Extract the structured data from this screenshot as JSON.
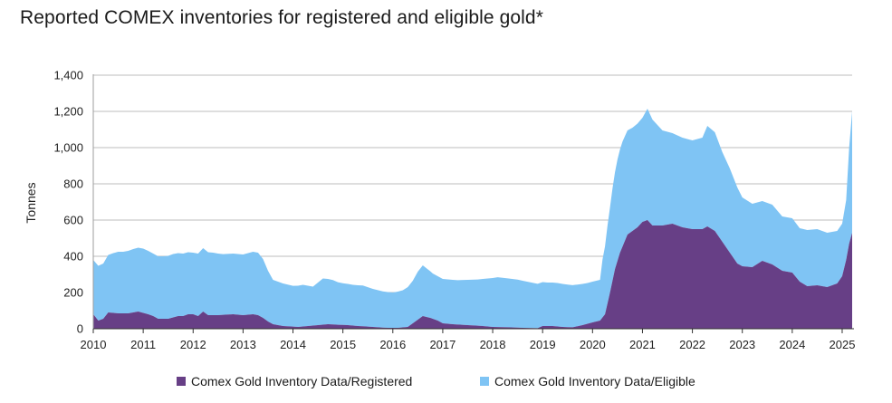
{
  "chart_data": {
    "type": "area",
    "title": "Reported COMEX inventories for registered and eligible gold*",
    "ylabel": "Tonnes",
    "xlabel": "",
    "ylim": [
      0,
      1400
    ],
    "yticks": [
      0,
      200,
      400,
      600,
      800,
      1000,
      1200,
      1400
    ],
    "ytick_labels": [
      "0",
      "200",
      "400",
      "600",
      "800",
      "1,000",
      "1,200",
      "1,400"
    ],
    "xlim": [
      2010,
      2025.2
    ],
    "xticks": [
      2010,
      2011,
      2012,
      2013,
      2014,
      2015,
      2016,
      2017,
      2018,
      2019,
      2020,
      2021,
      2022,
      2023,
      2024,
      2025
    ],
    "stacked": true,
    "grid": "horizontal",
    "legend_position": "bottom",
    "series": [
      {
        "name": "Comex Gold Inventory Data/Registered",
        "color": "#673f86",
        "points": [
          [
            2010.0,
            80
          ],
          [
            2010.1,
            45
          ],
          [
            2010.2,
            55
          ],
          [
            2010.3,
            90
          ],
          [
            2010.5,
            85
          ],
          [
            2010.7,
            85
          ],
          [
            2010.9,
            95
          ],
          [
            2011.1,
            80
          ],
          [
            2011.2,
            70
          ],
          [
            2011.3,
            55
          ],
          [
            2011.5,
            55
          ],
          [
            2011.7,
            70
          ],
          [
            2011.8,
            70
          ],
          [
            2011.9,
            80
          ],
          [
            2012.0,
            80
          ],
          [
            2012.1,
            70
          ],
          [
            2012.2,
            95
          ],
          [
            2012.3,
            75
          ],
          [
            2012.5,
            75
          ],
          [
            2012.8,
            80
          ],
          [
            2013.0,
            75
          ],
          [
            2013.2,
            80
          ],
          [
            2013.3,
            75
          ],
          [
            2013.4,
            60
          ],
          [
            2013.5,
            40
          ],
          [
            2013.6,
            25
          ],
          [
            2013.8,
            15
          ],
          [
            2014.0,
            12
          ],
          [
            2014.1,
            10
          ],
          [
            2014.3,
            15
          ],
          [
            2014.5,
            20
          ],
          [
            2014.7,
            25
          ],
          [
            2014.9,
            22
          ],
          [
            2015.1,
            20
          ],
          [
            2015.3,
            15
          ],
          [
            2015.5,
            12
          ],
          [
            2015.7,
            8
          ],
          [
            2015.9,
            5
          ],
          [
            2016.1,
            5
          ],
          [
            2016.3,
            10
          ],
          [
            2016.4,
            30
          ],
          [
            2016.5,
            50
          ],
          [
            2016.6,
            70
          ],
          [
            2016.75,
            60
          ],
          [
            2016.9,
            45
          ],
          [
            2017.0,
            30
          ],
          [
            2017.2,
            25
          ],
          [
            2017.5,
            20
          ],
          [
            2017.8,
            15
          ],
          [
            2018.0,
            10
          ],
          [
            2018.3,
            8
          ],
          [
            2018.6,
            5
          ],
          [
            2018.9,
            3
          ],
          [
            2019.0,
            15
          ],
          [
            2019.2,
            15
          ],
          [
            2019.4,
            10
          ],
          [
            2019.6,
            8
          ],
          [
            2019.8,
            20
          ],
          [
            2020.0,
            35
          ],
          [
            2020.15,
            45
          ],
          [
            2020.25,
            80
          ],
          [
            2020.35,
            200
          ],
          [
            2020.45,
            330
          ],
          [
            2020.55,
            420
          ],
          [
            2020.7,
            520
          ],
          [
            2020.9,
            560
          ],
          [
            2021.0,
            590
          ],
          [
            2021.1,
            600
          ],
          [
            2021.2,
            570
          ],
          [
            2021.4,
            570
          ],
          [
            2021.6,
            580
          ],
          [
            2021.8,
            560
          ],
          [
            2022.0,
            550
          ],
          [
            2022.2,
            550
          ],
          [
            2022.3,
            565
          ],
          [
            2022.45,
            540
          ],
          [
            2022.6,
            480
          ],
          [
            2022.75,
            420
          ],
          [
            2022.9,
            360
          ],
          [
            2023.0,
            345
          ],
          [
            2023.2,
            340
          ],
          [
            2023.4,
            375
          ],
          [
            2023.6,
            355
          ],
          [
            2023.8,
            320
          ],
          [
            2024.0,
            310
          ],
          [
            2024.15,
            260
          ],
          [
            2024.3,
            235
          ],
          [
            2024.5,
            240
          ],
          [
            2024.7,
            230
          ],
          [
            2024.9,
            250
          ],
          [
            2025.0,
            290
          ],
          [
            2025.08,
            380
          ],
          [
            2025.14,
            470
          ],
          [
            2025.2,
            530
          ]
        ]
      },
      {
        "name": "Comex Gold Inventory Data/Eligible",
        "color": "#7fc4f4",
        "points": [
          [
            2010.0,
            300
          ],
          [
            2010.2,
            305
          ],
          [
            2010.4,
            330
          ],
          [
            2010.5,
            340
          ],
          [
            2010.6,
            340
          ],
          [
            2010.8,
            350
          ],
          [
            2011.0,
            355
          ],
          [
            2011.2,
            345
          ],
          [
            2011.4,
            345
          ],
          [
            2011.6,
            350
          ],
          [
            2011.8,
            345
          ],
          [
            2012.0,
            340
          ],
          [
            2012.2,
            350
          ],
          [
            2012.4,
            345
          ],
          [
            2012.6,
            335
          ],
          [
            2012.8,
            335
          ],
          [
            2013.0,
            335
          ],
          [
            2013.2,
            345
          ],
          [
            2013.3,
            345
          ],
          [
            2013.4,
            325
          ],
          [
            2013.5,
            280
          ],
          [
            2013.6,
            245
          ],
          [
            2013.8,
            235
          ],
          [
            2014.0,
            225
          ],
          [
            2014.2,
            230
          ],
          [
            2014.4,
            215
          ],
          [
            2014.6,
            255
          ],
          [
            2014.8,
            245
          ],
          [
            2014.9,
            235
          ],
          [
            2015.0,
            230
          ],
          [
            2015.2,
            225
          ],
          [
            2015.4,
            225
          ],
          [
            2015.6,
            210
          ],
          [
            2015.8,
            200
          ],
          [
            2016.0,
            195
          ],
          [
            2016.2,
            205
          ],
          [
            2016.4,
            235
          ],
          [
            2016.5,
            265
          ],
          [
            2016.6,
            280
          ],
          [
            2016.7,
            265
          ],
          [
            2016.8,
            250
          ],
          [
            2016.9,
            245
          ],
          [
            2017.1,
            245
          ],
          [
            2017.3,
            245
          ],
          [
            2017.5,
            250
          ],
          [
            2017.7,
            255
          ],
          [
            2017.9,
            265
          ],
          [
            2018.1,
            275
          ],
          [
            2018.3,
            270
          ],
          [
            2018.5,
            265
          ],
          [
            2018.7,
            255
          ],
          [
            2018.9,
            245
          ],
          [
            2019.1,
            240
          ],
          [
            2019.3,
            240
          ],
          [
            2019.5,
            235
          ],
          [
            2019.7,
            230
          ],
          [
            2019.9,
            225
          ],
          [
            2020.0,
            225
          ],
          [
            2020.15,
            225
          ],
          [
            2020.2,
            320
          ],
          [
            2020.3,
            430
          ],
          [
            2020.4,
            510
          ],
          [
            2020.5,
            560
          ],
          [
            2020.6,
            580
          ],
          [
            2020.8,
            570
          ],
          [
            2021.0,
            575
          ],
          [
            2021.1,
            615
          ],
          [
            2021.2,
            585
          ],
          [
            2021.4,
            525
          ],
          [
            2021.6,
            500
          ],
          [
            2021.8,
            495
          ],
          [
            2022.0,
            490
          ],
          [
            2022.2,
            505
          ],
          [
            2022.3,
            555
          ],
          [
            2022.45,
            545
          ],
          [
            2022.6,
            495
          ],
          [
            2022.75,
            465
          ],
          [
            2022.9,
            420
          ],
          [
            2023.0,
            380
          ],
          [
            2023.2,
            350
          ],
          [
            2023.4,
            330
          ],
          [
            2023.6,
            330
          ],
          [
            2023.8,
            300
          ],
          [
            2024.0,
            300
          ],
          [
            2024.15,
            295
          ],
          [
            2024.3,
            310
          ],
          [
            2024.5,
            310
          ],
          [
            2024.7,
            300
          ],
          [
            2024.9,
            290
          ],
          [
            2025.0,
            290
          ],
          [
            2025.08,
            330
          ],
          [
            2025.14,
            530
          ],
          [
            2025.2,
            670
          ]
        ]
      }
    ]
  },
  "legend": {
    "registered": "Comex Gold Inventory Data/Registered",
    "eligible": "Comex Gold Inventory Data/Eligible"
  }
}
